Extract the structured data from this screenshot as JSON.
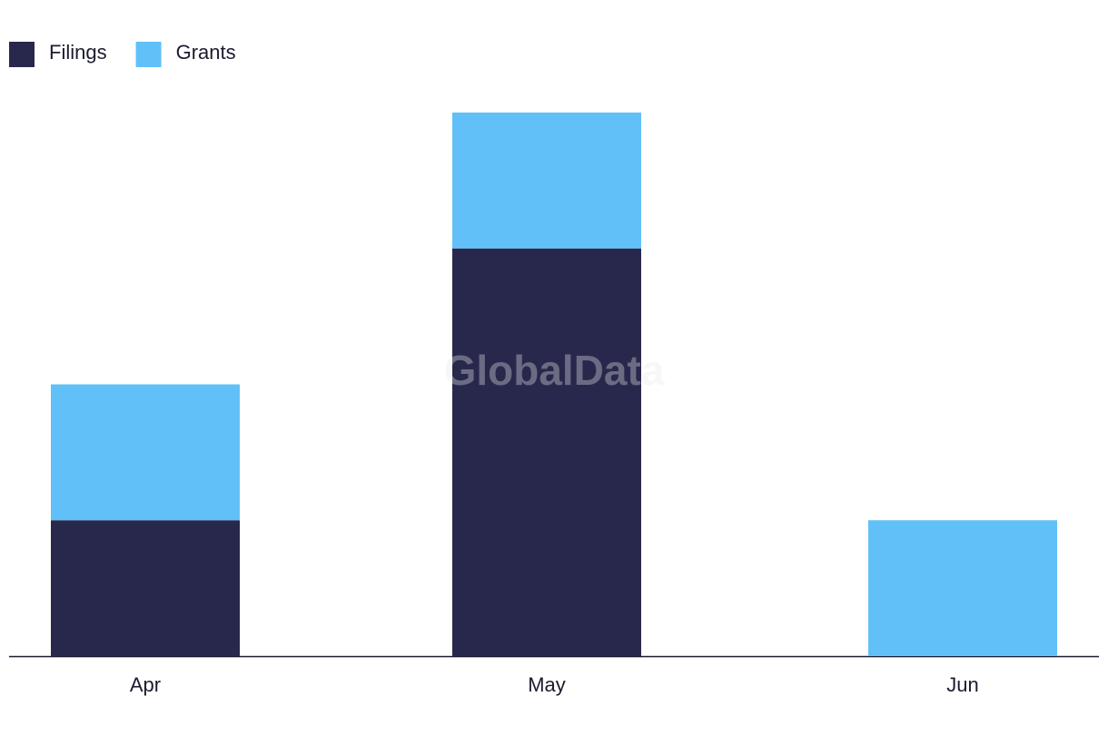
{
  "chart_data": {
    "type": "stacked-bar",
    "categories": [
      "Apr",
      "May",
      "Jun"
    ],
    "series": [
      {
        "name": "Filings",
        "color": "#28284c",
        "values": [
          1,
          3,
          0
        ]
      },
      {
        "name": "Grants",
        "color": "#62c0f8",
        "values": [
          1,
          1,
          1
        ]
      }
    ],
    "watermark": "GlobalData"
  }
}
